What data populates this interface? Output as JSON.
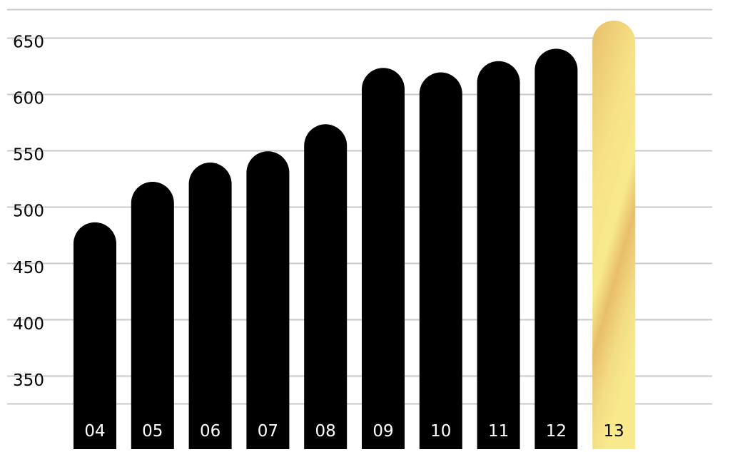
{
  "chart_data": {
    "type": "bar",
    "title": "",
    "xlabel": "",
    "ylabel": "",
    "categories": [
      "04",
      "05",
      "06",
      "07",
      "08",
      "09",
      "10",
      "11",
      "12",
      "13"
    ],
    "values": [
      486,
      522,
      539,
      549,
      573,
      623,
      619,
      629,
      640,
      665
    ],
    "y_ticks": [
      350,
      400,
      450,
      500,
      550,
      600,
      650
    ],
    "ylim": [
      300,
      675
    ],
    "grid": true,
    "legend": "none",
    "highlight_category": "13",
    "colors": {
      "bar": "#000000",
      "bar_label": "#ffffff",
      "highlight_light": "#f8ea8c",
      "highlight_dark": "#e8bf68",
      "highlight_label": "#000000",
      "grid": "#c8c8c8",
      "tick_label": "#000000"
    }
  }
}
